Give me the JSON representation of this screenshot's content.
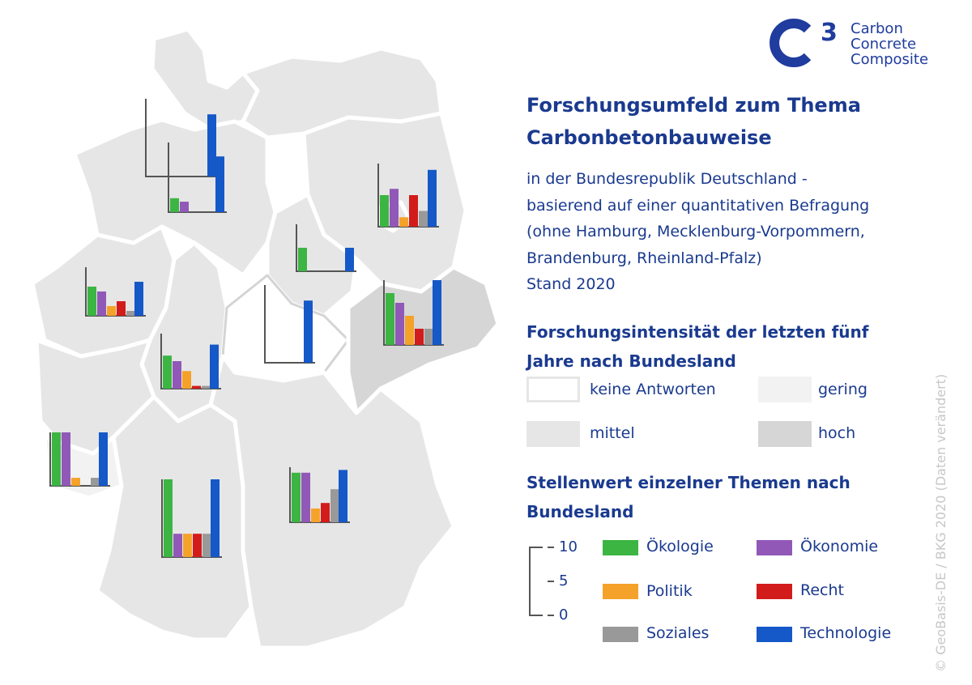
{
  "logo": {
    "mark_text": "C",
    "mark_sup": "3",
    "lines": [
      "Carbon",
      "Concrete",
      "Composite"
    ]
  },
  "title": [
    "Forschungsumfeld zum Thema",
    "Carbonbetonbauweise"
  ],
  "subtitle": [
    "in der Bundesrepublik Deutschland -",
    "basierend auf einer quantitativen Befragung",
    "(ohne Hamburg, Mecklenburg-Vorpommern,",
    "Brandenburg, Rheinland-Pfalz)",
    "Stand 2020"
  ],
  "intensity": {
    "title": [
      "Forschungsintensität der letzten fünf",
      "Jahre nach Bundesland"
    ],
    "levels": [
      {
        "label": "keine Antworten",
        "color": "#ffffff"
      },
      {
        "label": "gering",
        "color": "#f2f2f2"
      },
      {
        "label": "mittel",
        "color": "#e6e6e6"
      },
      {
        "label": "hoch",
        "color": "#d6d6d6"
      }
    ]
  },
  "topics": {
    "title": [
      "Stellenwert einzelner Themen nach",
      "Bundesland"
    ],
    "scale": [
      "10",
      "5",
      "0"
    ],
    "items": [
      {
        "label": "Ökologie",
        "color": "#3cb543"
      },
      {
        "label": "Ökonomie",
        "color": "#9158b8"
      },
      {
        "label": "Politik",
        "color": "#f5a22a"
      },
      {
        "label": "Recht",
        "color": "#d21b1b"
      },
      {
        "label": "Soziales",
        "color": "#999999"
      },
      {
        "label": "Technologie",
        "color": "#1558c8"
      }
    ]
  },
  "chart_data": {
    "type": "bar",
    "categories": [
      "Ökologie",
      "Ökonomie",
      "Politik",
      "Recht",
      "Soziales",
      "Technologie"
    ],
    "ylim": [
      0,
      10
    ],
    "states": [
      {
        "values": [
          0,
          0,
          0,
          0,
          0,
          8
        ]
      },
      {
        "values": [
          2,
          1.5,
          0,
          0,
          0,
          8
        ]
      },
      {
        "values": [
          5,
          6,
          1.5,
          5,
          2.5,
          9
        ]
      },
      {
        "values": [
          5,
          0,
          0,
          0,
          0,
          5
        ]
      },
      {
        "values": [
          0,
          0,
          0,
          0,
          0,
          8
        ]
      },
      {
        "values": [
          6,
          5,
          2,
          3,
          1,
          7
        ]
      },
      {
        "values": [
          8,
          6.5,
          4.5,
          2.5,
          2.5,
          10
        ]
      },
      {
        "values": [
          6,
          5,
          3.2,
          0.5,
          0.5,
          8
        ]
      },
      {
        "values": [
          10,
          10,
          1.5,
          0,
          1.5,
          10
        ]
      },
      {
        "values": [
          10,
          3,
          3,
          3,
          3,
          10
        ]
      },
      {
        "values": [
          9,
          9,
          2.5,
          3.5,
          6,
          9.5
        ]
      }
    ]
  },
  "copyright": "© GeoBasis-DE / BKG 2020 (Daten verändert)"
}
